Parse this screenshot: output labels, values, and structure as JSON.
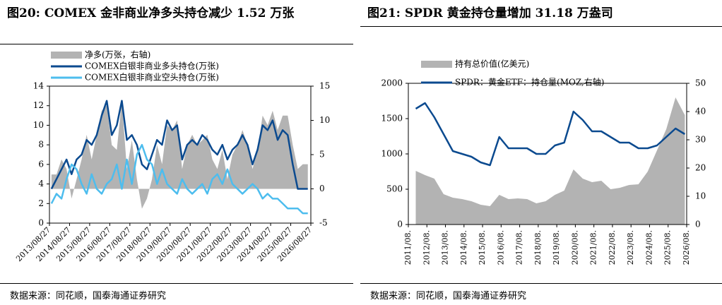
{
  "chart_data": [
    {
      "type": "line",
      "title": "图20:  COMEX 金非商业净多头持仓减少 1.52 万张",
      "source": "数据来源：同花顺，国泰海通证券研究",
      "x": [
        2013.75,
        2014.0,
        2014.25,
        2014.5,
        2014.75,
        2015.0,
        2015.25,
        2015.5,
        2015.75,
        2016.0,
        2016.25,
        2016.5,
        2016.75,
        2017.0,
        2017.25,
        2017.5,
        2017.75,
        2018.0,
        2018.25,
        2018.5,
        2018.75,
        2019.0,
        2019.25,
        2019.5,
        2019.75,
        2020.0,
        2020.25,
        2020.5,
        2020.75,
        2021.0,
        2021.25,
        2021.5,
        2021.75,
        2022.0,
        2022.25,
        2022.5,
        2022.75,
        2023.0,
        2023.25,
        2023.5,
        2023.75,
        2024.0,
        2024.25,
        2024.5,
        2024.75,
        2025.0,
        2025.25,
        2025.5,
        2025.75,
        2026.0,
        2026.25,
        2026.5
      ],
      "xlim": [
        2013.65,
        2026.65
      ],
      "xticks": [
        {
          "value": 2013.65,
          "label": "2013/08/27"
        },
        {
          "value": 2014.65,
          "label": "2014/08/27"
        },
        {
          "value": 2015.65,
          "label": "2015/08/27"
        },
        {
          "value": 2016.65,
          "label": "2016/08/27"
        },
        {
          "value": 2017.65,
          "label": "2017/08/27"
        },
        {
          "value": 2018.65,
          "label": "2018/08/27"
        },
        {
          "value": 2019.65,
          "label": "2019/08/27"
        },
        {
          "value": 2020.65,
          "label": "2020/08/27"
        },
        {
          "value": 2021.65,
          "label": "2021/08/27"
        },
        {
          "value": 2022.65,
          "label": "2022/08/27"
        },
        {
          "value": 2023.65,
          "label": "2023/08/27"
        },
        {
          "value": 2024.65,
          "label": "2024/08/27"
        },
        {
          "value": 2025.65,
          "label": "2025/08/27"
        },
        {
          "value": 2026.65,
          "label": "2026/08/27"
        }
      ],
      "ylim": [
        0,
        14
      ],
      "yticks": [
        0,
        2,
        4,
        6,
        8,
        10,
        12,
        14
      ],
      "y2lim": [
        -5,
        15
      ],
      "y2ticks": [
        -5,
        0,
        5,
        10,
        15
      ],
      "series": [
        {
          "name": "净多(万张，右轴)",
          "type": "area",
          "axis": "y2",
          "color": "#b3b3b3",
          "values": [
            2.1,
            2.1,
            4.3,
            2.9,
            -1.4,
            1.4,
            4.3,
            7.9,
            4.3,
            7.9,
            11.4,
            12.2,
            6.4,
            5.7,
            12.9,
            2.9,
            7.1,
            1.4,
            -2.9,
            -1.4,
            1.4,
            6.4,
            3.6,
            9.3,
            8.6,
            10.0,
            2.9,
            6.4,
            7.9,
            6.4,
            7.1,
            7.9,
            4.3,
            2.9,
            5.7,
            1.4,
            5.0,
            6.4,
            8.6,
            6.4,
            2.9,
            5.7,
            10.7,
            9.3,
            11.4,
            8.6,
            10.7,
            10.7,
            6.4,
            2.9,
            3.6,
            3.6
          ]
        },
        {
          "name": "COMEX白银非商业多头持仓(万张)",
          "type": "line",
          "axis": "y",
          "color": "#0b4a8f",
          "values": [
            3.5,
            4.5,
            5.5,
            6.5,
            5.0,
            6.5,
            7.0,
            8.5,
            8.0,
            9.0,
            11.0,
            12.5,
            9.0,
            10.0,
            12.5,
            8.5,
            9.0,
            8.0,
            6.0,
            5.5,
            7.0,
            8.5,
            8.0,
            10.5,
            9.5,
            10.0,
            6.5,
            8.0,
            8.5,
            8.0,
            9.0,
            8.5,
            7.5,
            7.0,
            8.0,
            6.5,
            7.5,
            8.0,
            9.0,
            8.0,
            6.0,
            7.5,
            10.0,
            9.5,
            10.5,
            8.5,
            9.5,
            9.0,
            6.0,
            3.5,
            3.5,
            3.5
          ]
        },
        {
          "name": "COMEX白银非商业空头持仓(万张)",
          "type": "line",
          "axis": "y",
          "color": "#4dbdee",
          "values": [
            2.0,
            3.0,
            2.5,
            4.5,
            6.0,
            5.5,
            4.0,
            3.0,
            5.0,
            3.5,
            3.0,
            4.0,
            4.5,
            6.0,
            3.5,
            6.5,
            4.0,
            7.0,
            8.0,
            6.5,
            6.0,
            4.0,
            5.5,
            4.0,
            3.5,
            3.0,
            4.5,
            3.5,
            3.0,
            3.5,
            4.0,
            3.0,
            4.5,
            5.0,
            4.0,
            5.5,
            4.0,
            3.5,
            3.0,
            3.5,
            4.0,
            3.5,
            2.5,
            3.0,
            2.5,
            2.5,
            2.0,
            1.5,
            1.5,
            1.5,
            1.0,
            1.0
          ]
        }
      ]
    },
    {
      "type": "line",
      "title": "图21:  SPDR 黄金持仓量增加 31.18 万盎司",
      "source": "数据来源：同花顺，国泰海通证券研究",
      "x": [
        2012.0,
        2012.5,
        2013.0,
        2013.5,
        2014.0,
        2014.5,
        2015.0,
        2015.5,
        2016.0,
        2016.5,
        2017.0,
        2017.5,
        2018.0,
        2018.5,
        2019.0,
        2019.5,
        2020.0,
        2020.5,
        2021.0,
        2021.5,
        2022.0,
        2022.5,
        2023.0,
        2023.5,
        2024.0,
        2024.5,
        2025.0,
        2025.5,
        2026.0,
        2026.5
      ],
      "xlim": [
        2011.6,
        2026.6
      ],
      "xticks": [
        {
          "value": 2011.6,
          "label": "2011/08."
        },
        {
          "value": 2012.6,
          "label": "2012/08."
        },
        {
          "value": 2013.6,
          "label": "2013/08."
        },
        {
          "value": 2014.6,
          "label": "2014/08."
        },
        {
          "value": 2015.6,
          "label": "2015/08."
        },
        {
          "value": 2016.6,
          "label": "2016/08."
        },
        {
          "value": 2017.6,
          "label": "2017/08."
        },
        {
          "value": 2018.6,
          "label": "2018/08."
        },
        {
          "value": 2019.6,
          "label": "2019/08."
        },
        {
          "value": 2020.6,
          "label": "2020/08."
        },
        {
          "value": 2021.6,
          "label": "2021/08."
        },
        {
          "value": 2022.6,
          "label": "2022/08."
        },
        {
          "value": 2023.6,
          "label": "2023/08."
        },
        {
          "value": 2024.6,
          "label": "2024/08."
        },
        {
          "value": 2025.6,
          "label": "2025/08."
        },
        {
          "value": 2026.6,
          "label": "2026/08."
        }
      ],
      "ylim": [
        0,
        2000
      ],
      "yticks": [
        0,
        500,
        1000,
        1500,
        2000
      ],
      "y2lim": [
        0,
        50
      ],
      "y2ticks": [
        0,
        10,
        20,
        30,
        40,
        50
      ],
      "series": [
        {
          "name": "持有总价值(亿美元)",
          "type": "area",
          "axis": "y",
          "color": "#b3b3b3",
          "values": [
            760,
            700,
            650,
            430,
            380,
            360,
            330,
            280,
            260,
            420,
            360,
            370,
            360,
            300,
            330,
            420,
            480,
            780,
            650,
            600,
            620,
            500,
            520,
            560,
            570,
            750,
            1050,
            1350,
            1800,
            1550
          ]
        },
        {
          "name": "SPDR：黄金ETF：持仓量(MOZ,右轴)",
          "type": "line",
          "axis": "y2",
          "color": "#0b4a8f",
          "values": [
            41,
            43,
            38,
            32,
            26,
            25,
            24,
            22,
            21,
            31,
            27,
            27,
            27,
            25,
            25,
            28,
            29,
            40,
            37,
            33,
            33,
            31,
            29,
            29,
            27,
            27,
            28,
            31,
            34,
            32
          ]
        }
      ]
    }
  ]
}
